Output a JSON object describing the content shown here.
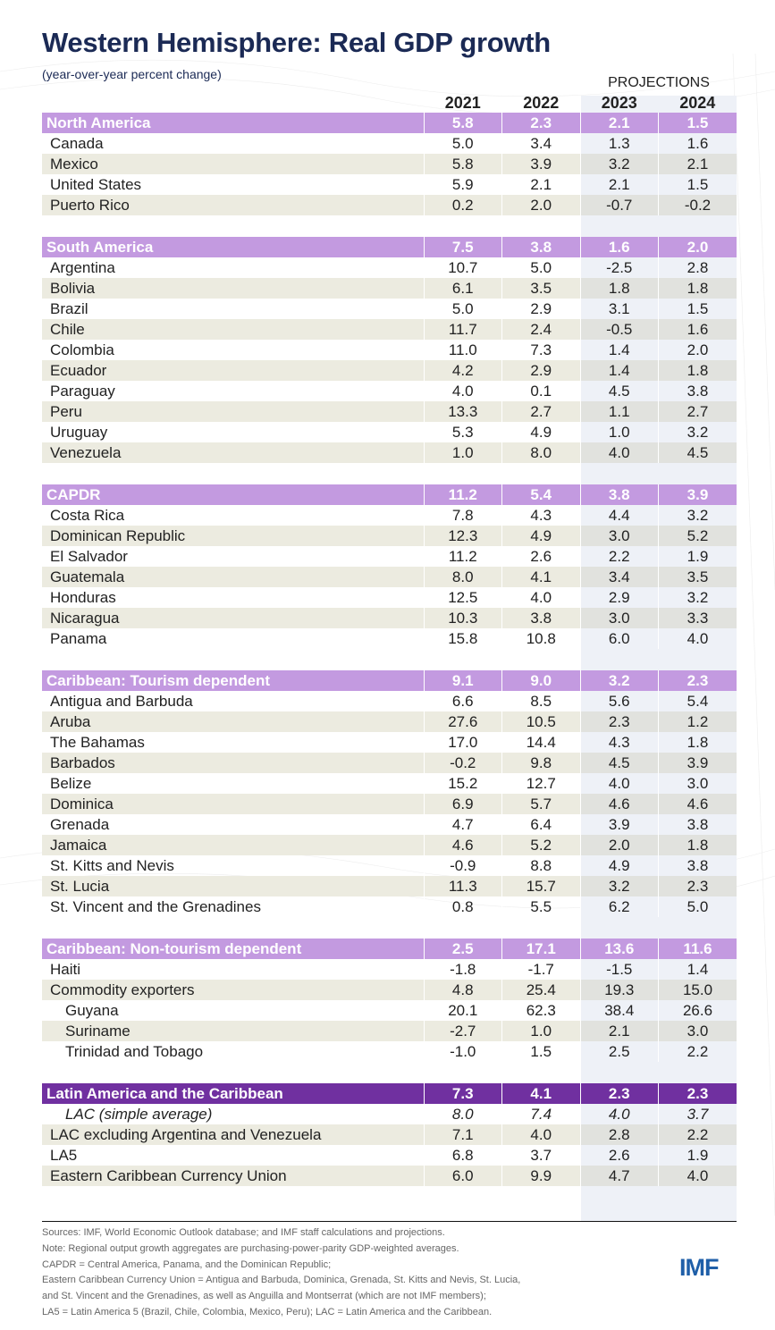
{
  "title": "Western Hemisphere: Real GDP growth",
  "subtitle": "(year-over-year percent change)",
  "projections_label": "PROJECTIONS",
  "logo": "IMF",
  "chart_data": {
    "type": "table",
    "columns": [
      "2021",
      "2022",
      "2023",
      "2024"
    ],
    "groups": [
      {
        "name": "North America",
        "values": [
          "5.8",
          "2.3",
          "2.1",
          "1.5"
        ],
        "rows": [
          {
            "name": "Canada",
            "values": [
              "5.0",
              "3.4",
              "1.3",
              "1.6"
            ]
          },
          {
            "name": "Mexico",
            "values": [
              "5.8",
              "3.9",
              "3.2",
              "2.1"
            ]
          },
          {
            "name": "United States",
            "values": [
              "5.9",
              "2.1",
              "2.1",
              "1.5"
            ]
          },
          {
            "name": "Puerto Rico",
            "values": [
              "0.2",
              "2.0",
              "-0.7",
              "-0.2"
            ]
          }
        ]
      },
      {
        "name": "South America",
        "values": [
          "7.5",
          "3.8",
          "1.6",
          "2.0"
        ],
        "rows": [
          {
            "name": "Argentina",
            "values": [
              "10.7",
              "5.0",
              "-2.5",
              "2.8"
            ]
          },
          {
            "name": "Bolivia",
            "values": [
              "6.1",
              "3.5",
              "1.8",
              "1.8"
            ]
          },
          {
            "name": "Brazil",
            "values": [
              "5.0",
              "2.9",
              "3.1",
              "1.5"
            ]
          },
          {
            "name": "Chile",
            "values": [
              "11.7",
              "2.4",
              "-0.5",
              "1.6"
            ]
          },
          {
            "name": "Colombia",
            "values": [
              "11.0",
              "7.3",
              "1.4",
              "2.0"
            ]
          },
          {
            "name": "Ecuador",
            "values": [
              "4.2",
              "2.9",
              "1.4",
              "1.8"
            ]
          },
          {
            "name": "Paraguay",
            "values": [
              "4.0",
              "0.1",
              "4.5",
              "3.8"
            ]
          },
          {
            "name": "Peru",
            "values": [
              "13.3",
              "2.7",
              "1.1",
              "2.7"
            ]
          },
          {
            "name": "Uruguay",
            "values": [
              "5.3",
              "4.9",
              "1.0",
              "3.2"
            ]
          },
          {
            "name": "Venezuela",
            "values": [
              "1.0",
              "8.0",
              "4.0",
              "4.5"
            ]
          }
        ]
      },
      {
        "name": "CAPDR",
        "values": [
          "11.2",
          "5.4",
          "3.8",
          "3.9"
        ],
        "rows": [
          {
            "name": "Costa Rica",
            "values": [
              "7.8",
              "4.3",
              "4.4",
              "3.2"
            ]
          },
          {
            "name": "Dominican Republic",
            "values": [
              "12.3",
              "4.9",
              "3.0",
              "5.2"
            ]
          },
          {
            "name": "El Salvador",
            "values": [
              "11.2",
              "2.6",
              "2.2",
              "1.9"
            ]
          },
          {
            "name": "Guatemala",
            "values": [
              "8.0",
              "4.1",
              "3.4",
              "3.5"
            ]
          },
          {
            "name": "Honduras",
            "values": [
              "12.5",
              "4.0",
              "2.9",
              "3.2"
            ]
          },
          {
            "name": "Nicaragua",
            "values": [
              "10.3",
              "3.8",
              "3.0",
              "3.3"
            ]
          },
          {
            "name": "Panama",
            "values": [
              "15.8",
              "10.8",
              "6.0",
              "4.0"
            ]
          }
        ]
      },
      {
        "name": "Caribbean: Tourism dependent",
        "values": [
          "9.1",
          "9.0",
          "3.2",
          "2.3"
        ],
        "rows": [
          {
            "name": "Antigua and Barbuda",
            "values": [
              "6.6",
              "8.5",
              "5.6",
              "5.4"
            ]
          },
          {
            "name": "Aruba",
            "values": [
              "27.6",
              "10.5",
              "2.3",
              "1.2"
            ]
          },
          {
            "name": "The Bahamas",
            "values": [
              "17.0",
              "14.4",
              "4.3",
              "1.8"
            ]
          },
          {
            "name": "Barbados",
            "values": [
              "-0.2",
              "9.8",
              "4.5",
              "3.9"
            ]
          },
          {
            "name": "Belize",
            "values": [
              "15.2",
              "12.7",
              "4.0",
              "3.0"
            ]
          },
          {
            "name": "Dominica",
            "values": [
              "6.9",
              "5.7",
              "4.6",
              "4.6"
            ]
          },
          {
            "name": "Grenada",
            "values": [
              "4.7",
              "6.4",
              "3.9",
              "3.8"
            ]
          },
          {
            "name": "Jamaica",
            "values": [
              "4.6",
              "5.2",
              "2.0",
              "1.8"
            ]
          },
          {
            "name": "St. Kitts and Nevis",
            "values": [
              "-0.9",
              "8.8",
              "4.9",
              "3.8"
            ]
          },
          {
            "name": "St. Lucia",
            "values": [
              "11.3",
              "15.7",
              "3.2",
              "2.3"
            ]
          },
          {
            "name": "St. Vincent and the Grenadines",
            "values": [
              "0.8",
              "5.5",
              "6.2",
              "5.0"
            ]
          }
        ]
      },
      {
        "name": "Caribbean: Non-tourism dependent",
        "values": [
          "2.5",
          "17.1",
          "13.6",
          "11.6"
        ],
        "rows": [
          {
            "name": "Haiti",
            "values": [
              "-1.8",
              "-1.7",
              "-1.5",
              "1.4"
            ]
          },
          {
            "name": "Commodity exporters",
            "values": [
              "4.8",
              "25.4",
              "19.3",
              "15.0"
            ]
          },
          {
            "name": "Guyana",
            "values": [
              "20.1",
              "62.3",
              "38.4",
              "26.6"
            ],
            "indent": true
          },
          {
            "name": "Suriname",
            "values": [
              "-2.7",
              "1.0",
              "2.1",
              "3.0"
            ],
            "indent": true
          },
          {
            "name": "Trinidad and Tobago",
            "values": [
              "-1.0",
              "1.5",
              "2.5",
              "2.2"
            ],
            "indent": true
          }
        ]
      },
      {
        "name": "Latin America and the Caribbean",
        "values": [
          "7.3",
          "4.1",
          "2.3",
          "2.3"
        ],
        "dark": true,
        "rows": [
          {
            "name": "LAC (simple average)",
            "values": [
              "8.0",
              "7.4",
              "4.0",
              "3.7"
            ],
            "indent": true,
            "italic": true
          },
          {
            "name": "LAC excluding Argentina and Venezuela",
            "values": [
              "7.1",
              "4.0",
              "2.8",
              "2.2"
            ]
          },
          {
            "name": "LA5",
            "values": [
              "6.8",
              "3.7",
              "2.6",
              "1.9"
            ]
          },
          {
            "name": "Eastern Caribbean Currency Union",
            "values": [
              "6.0",
              "9.9",
              "4.7",
              "4.0"
            ]
          }
        ]
      }
    ]
  },
  "notes": [
    "Sources: IMF, World Economic Outlook database; and IMF staff calculations and projections.",
    "Note: Regional output growth aggregates are purchasing-power-parity GDP-weighted averages.",
    "CAPDR = Central America, Panama, and the Dominican Republic;",
    "Eastern Caribbean Currency Union = Antigua and Barbuda, Dominica, Grenada, St. Kitts and Nevis, St. Lucia,",
    "and St. Vincent and the Grenadines, as well as Anguilla and Montserrat (which are not IMF members);",
    "LA5 = Latin America 5 (Brazil, Chile, Colombia, Mexico, Peru); LAC = Latin America and the Caribbean."
  ]
}
